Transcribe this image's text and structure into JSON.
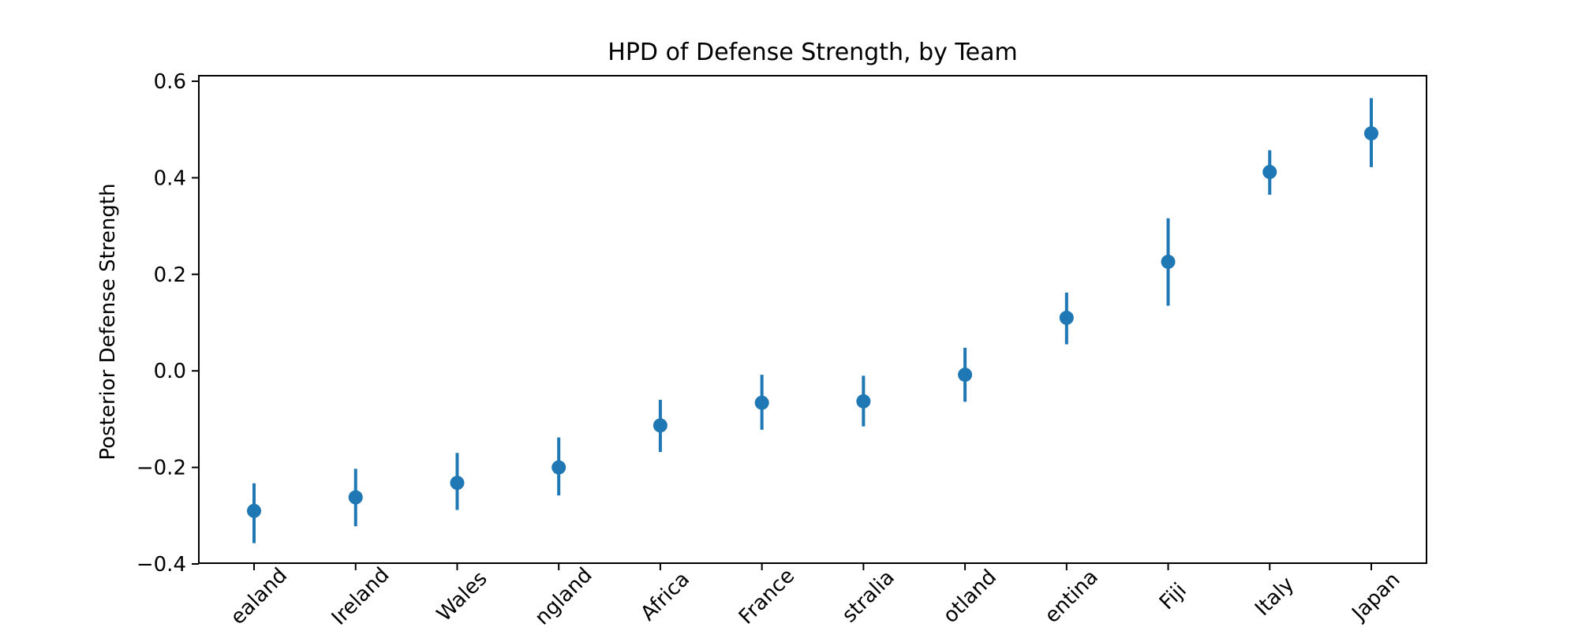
{
  "chart_data": {
    "type": "scatter",
    "title": "HPD of Defense Strength, by Team",
    "xlabel": "",
    "ylabel": "Posterior Defense Strength",
    "ylim": [
      -0.4,
      0.6
    ],
    "yticks": [
      "−0.4",
      "−0.2",
      "0.0",
      "0.2",
      "0.4",
      "0.6"
    ],
    "ytick_values": [
      -0.4,
      -0.2,
      0.0,
      0.2,
      0.4,
      0.6
    ],
    "categories": [
      "ealand",
      "Ireland",
      "Wales",
      "ngland",
      "Africa",
      "France",
      "stralia",
      "otland",
      "entina",
      "Fiji",
      "Italy",
      "Japan"
    ],
    "values": [
      -0.29,
      -0.262,
      -0.232,
      -0.2,
      -0.113,
      -0.066,
      -0.063,
      -0.008,
      0.11,
      0.226,
      0.412,
      0.492
    ],
    "hpd_low": [
      -0.357,
      -0.322,
      -0.288,
      -0.258,
      -0.168,
      -0.122,
      -0.115,
      -0.064,
      0.055,
      0.135,
      0.365,
      0.422
    ],
    "hpd_high": [
      -0.233,
      -0.203,
      -0.17,
      -0.138,
      -0.06,
      -0.008,
      -0.01,
      0.048,
      0.162,
      0.316,
      0.457,
      0.565
    ],
    "colors": {
      "series": "#1f77b4",
      "axes": "#000000"
    },
    "grid": false
  }
}
